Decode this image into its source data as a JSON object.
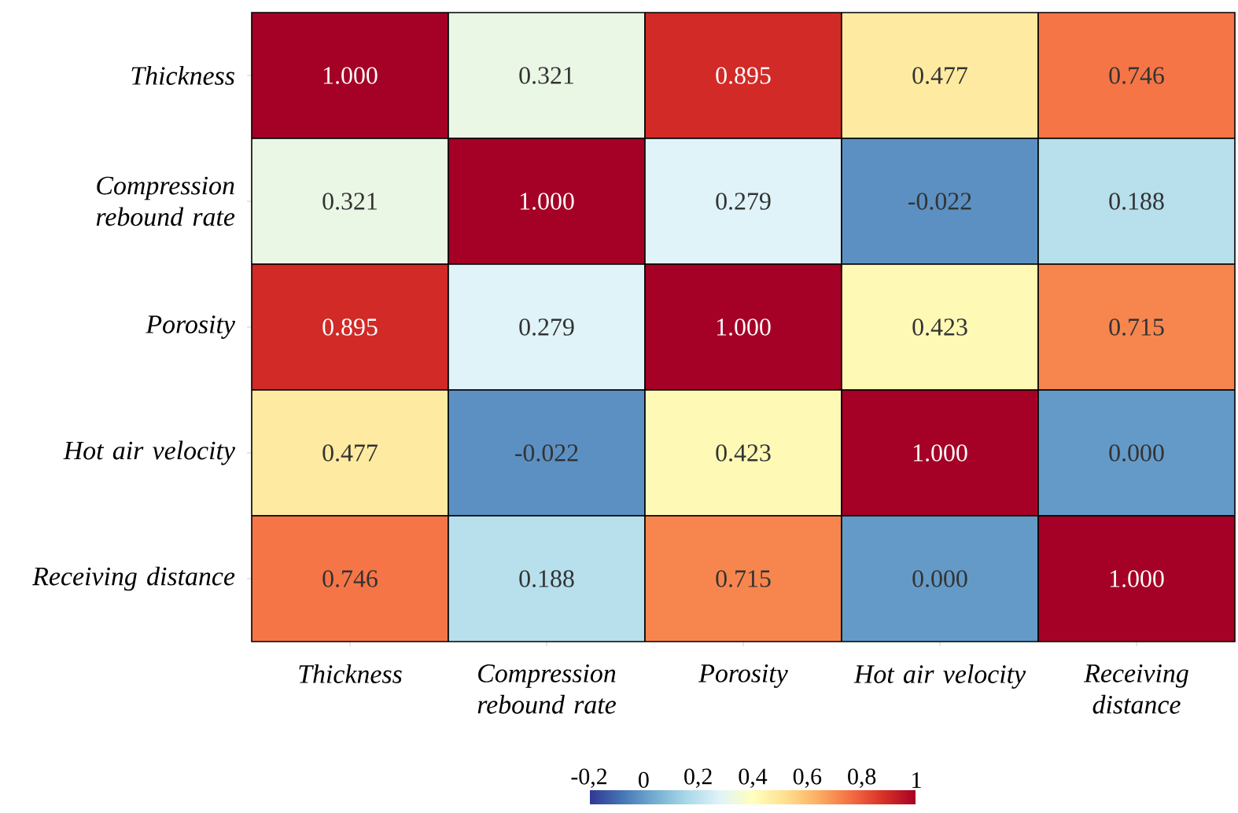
{
  "chart_data": {
    "type": "heatmap",
    "categories": [
      "Thickness",
      "Compression rebound rate",
      "Porosity",
      "Hot air velocity",
      "Receiving distance"
    ],
    "y_categories": [
      "Thickness",
      "Compression rebound rate",
      "Porosity",
      "Hot air velocity",
      "Receiving distance"
    ],
    "cells": [
      [
        1.0,
        0.321,
        0.895,
        0.477,
        0.746
      ],
      [
        0.321,
        1.0,
        0.279,
        -0.022,
        0.188
      ],
      [
        0.895,
        0.279,
        1.0,
        0.423,
        0.715
      ],
      [
        0.477,
        -0.022,
        0.423,
        1.0,
        0.0
      ],
      [
        0.746,
        0.188,
        0.715,
        0.0,
        1.0
      ]
    ],
    "cell_labels": [
      [
        "1.000",
        "0.321",
        "0.895",
        "0.477",
        "0.746"
      ],
      [
        "0.321",
        "1.000",
        "0.279",
        "-0.022",
        "0.188"
      ],
      [
        "0.895",
        "0.279",
        "1.000",
        "0.423",
        "0.715"
      ],
      [
        "0.477",
        "-0.022",
        "0.423",
        "1.000",
        "0.000"
      ],
      [
        "0.746",
        "0.188",
        "0.715",
        "0.000",
        "1.000"
      ]
    ],
    "clim": [
      -0.2,
      1
    ],
    "cticks": [
      {
        "value": -0.2,
        "label": "-0,2"
      },
      {
        "value": 0,
        "label": "0"
      },
      {
        "value": 0.2,
        "label": "0,2"
      },
      {
        "value": 0.4,
        "label": "0,4"
      },
      {
        "value": 0.6,
        "label": "0,6"
      },
      {
        "value": 0.8,
        "label": "0,8"
      },
      {
        "value": 1,
        "label": "1"
      }
    ]
  }
}
